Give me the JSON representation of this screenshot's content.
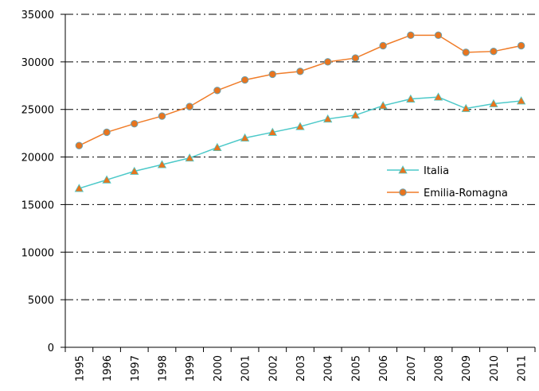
{
  "chart_data": {
    "type": "line",
    "categories": [
      "1995",
      "1996",
      "1997",
      "1998",
      "1999",
      "2000",
      "2001",
      "2002",
      "2003",
      "2004",
      "2005",
      "2006",
      "2007",
      "2008",
      "2009",
      "2010",
      "2011"
    ],
    "series": [
      {
        "name": "Italia",
        "color": "#4cc9c9",
        "marker": "triangle",
        "marker_color": "#e8741e",
        "values": [
          16700,
          17600,
          18500,
          19200,
          19900,
          21000,
          22000,
          22600,
          23200,
          24000,
          24400,
          25400,
          26100,
          26300,
          25100,
          25600,
          25900
        ]
      },
      {
        "name": "Emilia-Romagna",
        "color": "#f07c28",
        "marker": "circle",
        "marker_color": "#e8741e",
        "values": [
          21200,
          22600,
          23500,
          24300,
          25300,
          27000,
          28100,
          28700,
          29000,
          30000,
          30400,
          31700,
          32800,
          32800,
          31000,
          31100,
          31700
        ]
      }
    ],
    "ylim": [
      0,
      35000
    ],
    "yticks": [
      0,
      5000,
      10000,
      15000,
      20000,
      25000,
      30000,
      35000
    ],
    "grid": true,
    "legend": "right"
  }
}
